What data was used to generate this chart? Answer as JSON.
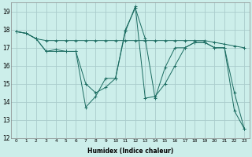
{
  "xlabel": "Humidex (Indice chaleur)",
  "bg_color": "#cceeea",
  "grid_color": "#aacccc",
  "line_color": "#1a6b60",
  "xlim": [
    -0.5,
    23.5
  ],
  "ylim": [
    12,
    19.5
  ],
  "yticks": [
    12,
    13,
    14,
    15,
    16,
    17,
    18,
    19
  ],
  "xticks": [
    0,
    1,
    2,
    3,
    4,
    5,
    6,
    7,
    8,
    9,
    10,
    11,
    12,
    13,
    14,
    15,
    16,
    17,
    18,
    19,
    20,
    21,
    22,
    23
  ],
  "series": [
    {
      "x": [
        0,
        1,
        2,
        3,
        4,
        5,
        6,
        7,
        8,
        9,
        10,
        11,
        12,
        13,
        14,
        15,
        16,
        17,
        18,
        19,
        20,
        21,
        22,
        23
      ],
      "y": [
        17.9,
        17.8,
        17.5,
        17.4,
        17.4,
        17.4,
        17.4,
        17.4,
        17.4,
        17.4,
        17.4,
        17.4,
        17.4,
        17.4,
        17.4,
        17.4,
        17.4,
        17.4,
        17.4,
        17.4,
        17.3,
        17.2,
        17.1,
        17.0
      ]
    },
    {
      "x": [
        0,
        1,
        2,
        3,
        4,
        5,
        6,
        7,
        8,
        9,
        10,
        11,
        12,
        13,
        14,
        15,
        16,
        17,
        18,
        19,
        20,
        21,
        22,
        23
      ],
      "y": [
        17.9,
        17.8,
        17.5,
        16.8,
        16.8,
        16.8,
        16.8,
        13.7,
        14.3,
        15.3,
        15.3,
        17.9,
        19.3,
        14.2,
        14.3,
        15.0,
        16.0,
        17.0,
        17.3,
        17.3,
        17.0,
        17.0,
        13.5,
        12.5
      ]
    },
    {
      "x": [
        0,
        1,
        2,
        3,
        4,
        5,
        6,
        7,
        8,
        9,
        10,
        11,
        12,
        13,
        14,
        15,
        16,
        17,
        18,
        19,
        20,
        21,
        22,
        23
      ],
      "y": [
        17.9,
        17.8,
        17.5,
        16.8,
        16.9,
        16.8,
        16.8,
        15.0,
        14.5,
        14.8,
        15.3,
        18.0,
        19.2,
        17.5,
        14.2,
        15.9,
        17.0,
        17.0,
        17.3,
        17.3,
        17.0,
        17.0,
        14.5,
        12.5
      ]
    }
  ]
}
